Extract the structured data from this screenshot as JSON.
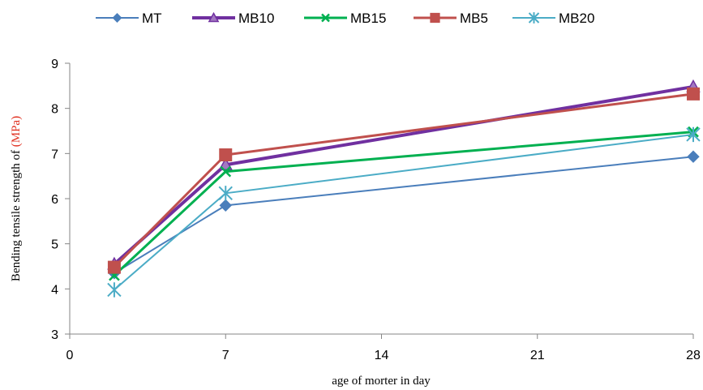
{
  "chart_data": {
    "type": "line",
    "xlabel": "age of morter in day",
    "ylabel_prefix": "Bending tensile strength of ",
    "ylabel_unit": "(MPa)",
    "xlim": [
      0,
      28
    ],
    "ylim": [
      3,
      9
    ],
    "x_ticks": [
      0,
      7,
      14,
      21,
      28
    ],
    "y_ticks": [
      3,
      4,
      5,
      6,
      7,
      8,
      9
    ],
    "grid": false,
    "legend_position": "top",
    "x": [
      2,
      7,
      28
    ],
    "series": [
      {
        "name": "MT",
        "values": [
          4.35,
          5.85,
          6.93
        ],
        "color": "#4a7ebb",
        "marker": "diamond",
        "width": 2
      },
      {
        "name": "MB10",
        "values": [
          4.55,
          6.75,
          8.48
        ],
        "color": "#7030a0",
        "marker": "triangle",
        "width": 4
      },
      {
        "name": "MB15",
        "values": [
          4.3,
          6.6,
          7.48
        ],
        "color": "#00b050",
        "marker": "x",
        "width": 3
      },
      {
        "name": "MB5",
        "values": [
          4.48,
          6.97,
          8.32
        ],
        "color": "#c0504d",
        "marker": "square",
        "width": 3
      },
      {
        "name": "MB20",
        "values": [
          3.98,
          6.12,
          7.42
        ],
        "color": "#4bacc6",
        "marker": "star",
        "width": 2
      }
    ]
  }
}
